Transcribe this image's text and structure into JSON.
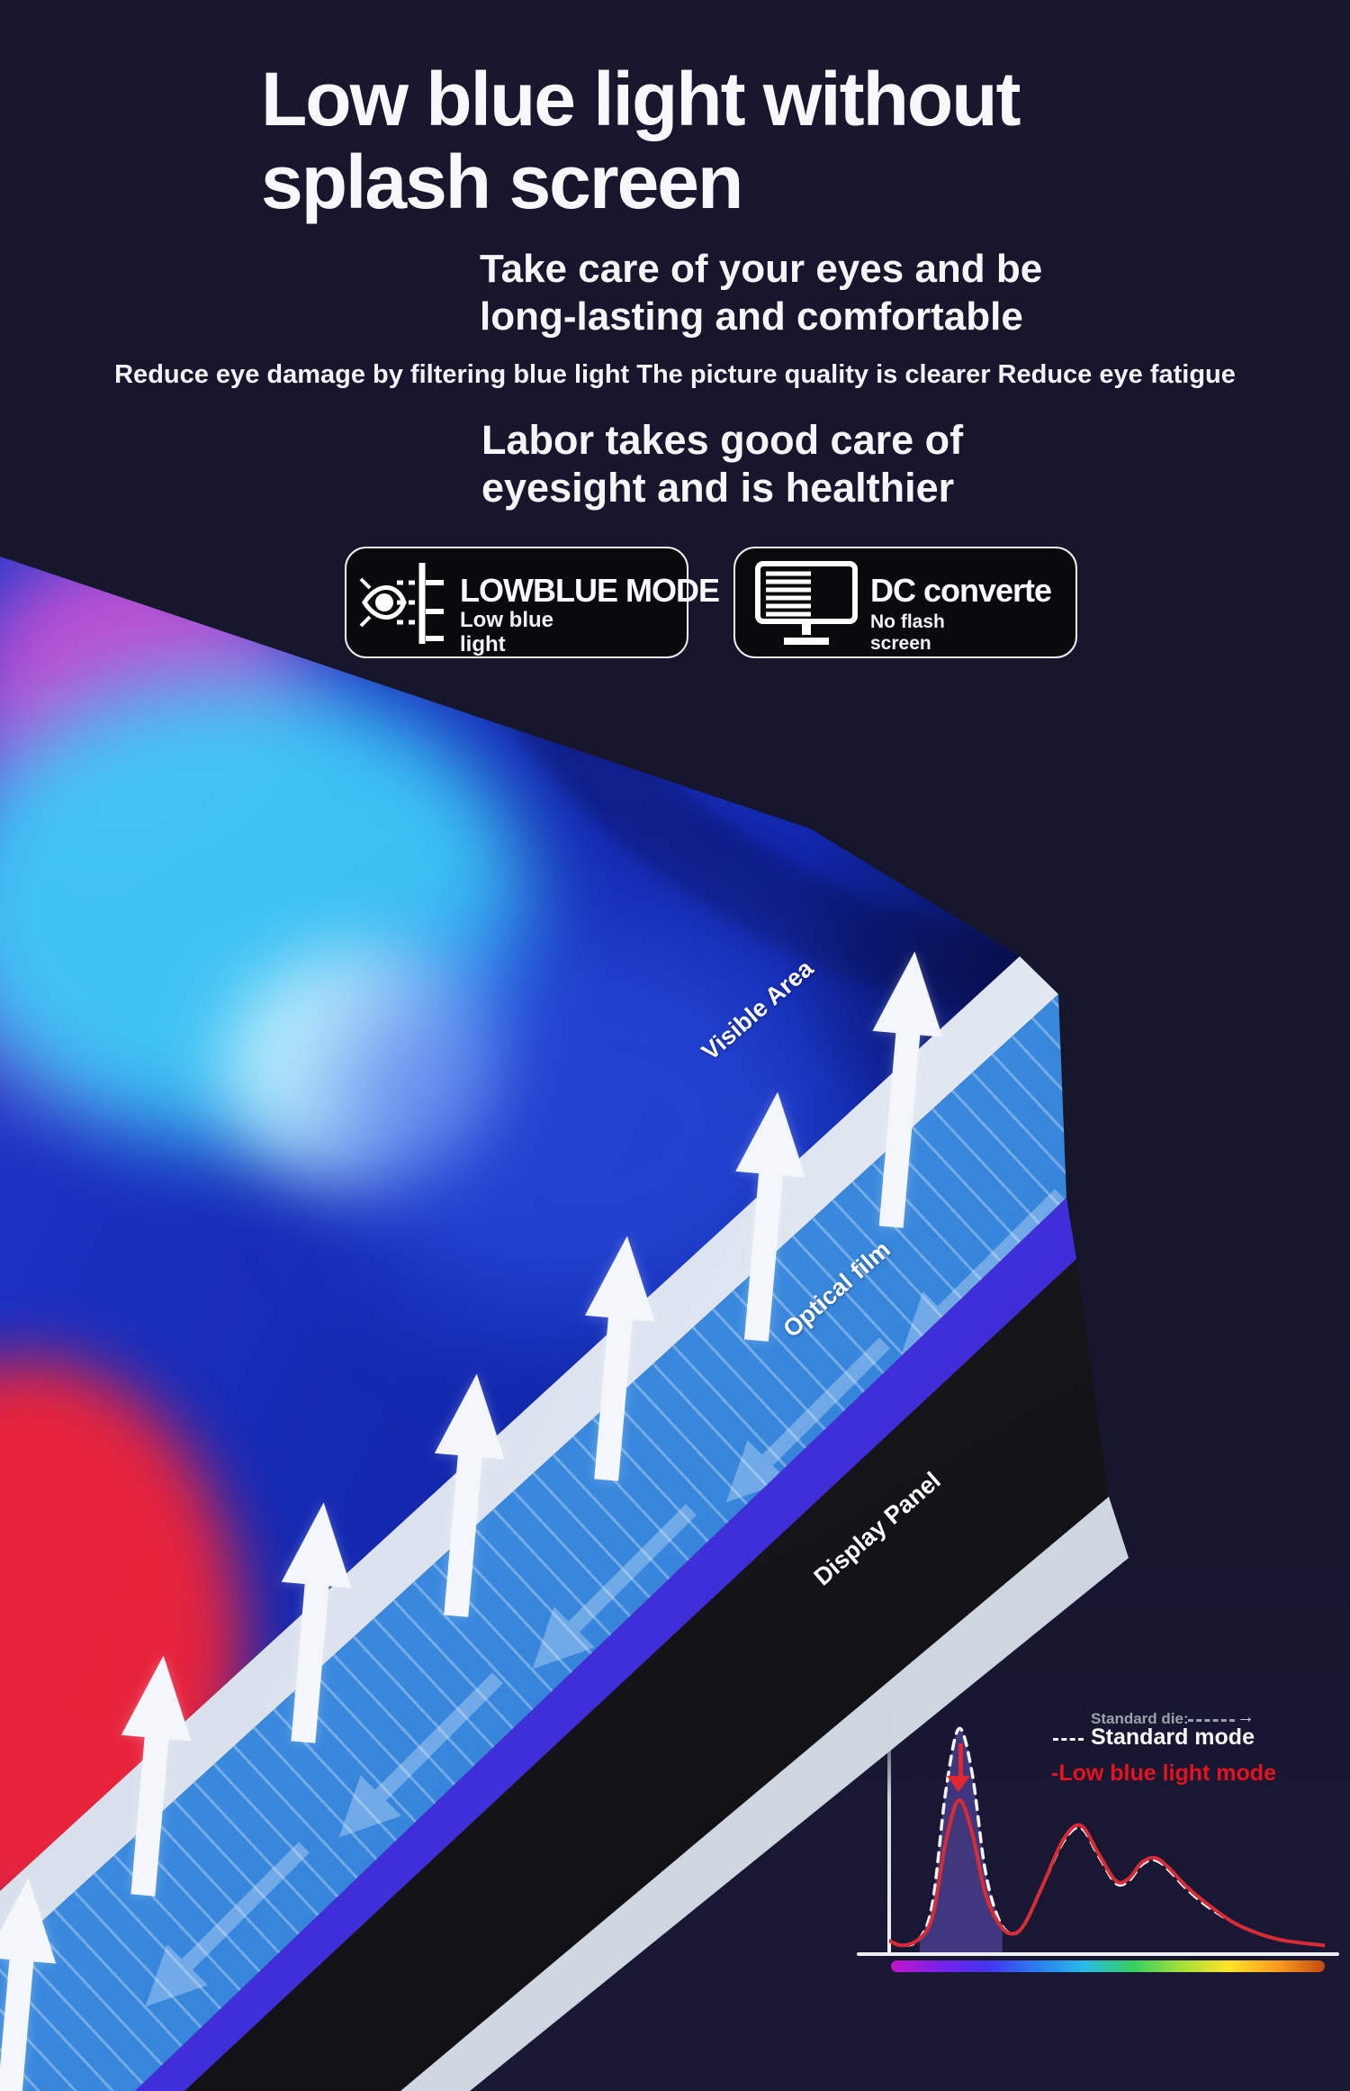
{
  "header": {
    "title_line1": "Low blue light without",
    "title_line2": "splash screen",
    "subtitle_line1": "Take care of your eyes and be",
    "subtitle_line2": "long-lasting and comfortable",
    "tagline": "Reduce eye damage by filtering blue light The picture quality is clearer Reduce eye fatigue",
    "benefit_line1": "Labor takes good care of",
    "benefit_line2": "eyesight and is healthier"
  },
  "badges": {
    "low_blue": {
      "icon": "eye-filter-icon",
      "title": "LOWBLUE MODE",
      "sub_line1": "Low blue",
      "sub_line2": "light"
    },
    "dc": {
      "icon": "monitor-lines-icon",
      "title": "DC converte",
      "sub_line1": "No flash",
      "sub_line2": "screen"
    }
  },
  "layers": {
    "visible_area": "Visible Area",
    "optical_film": "Optical film",
    "display_panel": "Display Panel"
  },
  "colors": {
    "background": "#15152b",
    "screen_blue": "#1c30c2",
    "film_blue": "#3a8ade",
    "purple_edge": "#4433e0",
    "panel_black": "#1a1a1f",
    "gray_edge": "#c4cdd9",
    "standard_curve": "#f2f4f8",
    "low_blue_curve": "#d92b33",
    "legend_red": "#e8121f"
  },
  "chart_data": {
    "type": "line",
    "title": "",
    "xlabel": "",
    "ylabel": "",
    "x_range_percent": [
      0,
      100
    ],
    "y_range_percent": [
      0,
      100
    ],
    "grid": false,
    "legend_position": "top-right",
    "legend": {
      "annotation": "Standard die:",
      "standard": "Standard mode",
      "low_blue": "-Low blue light mode"
    },
    "series": [
      {
        "name": "Standard mode",
        "style": "dashed",
        "color": "#f2f4f8",
        "points": [
          [
            0,
            5
          ],
          [
            3,
            3
          ],
          [
            7,
            6
          ],
          [
            10,
            22
          ],
          [
            13,
            70
          ],
          [
            16,
            97
          ],
          [
            19,
            78
          ],
          [
            22,
            36
          ],
          [
            25,
            15
          ],
          [
            28,
            8
          ],
          [
            31,
            12
          ],
          [
            35,
            28
          ],
          [
            40,
            48
          ],
          [
            44,
            54
          ],
          [
            48,
            42
          ],
          [
            52,
            30
          ],
          [
            55,
            31
          ],
          [
            58,
            38
          ],
          [
            61,
            40
          ],
          [
            64,
            36
          ],
          [
            68,
            28
          ],
          [
            73,
            20
          ],
          [
            79,
            13
          ],
          [
            85,
            8
          ],
          [
            91,
            5
          ],
          [
            100,
            3
          ]
        ]
      },
      {
        "name": "-Low blue light mode",
        "style": "solid",
        "color": "#d92b33",
        "points": [
          [
            0,
            5
          ],
          [
            3,
            3
          ],
          [
            7,
            6
          ],
          [
            10,
            16
          ],
          [
            13,
            48
          ],
          [
            16,
            66
          ],
          [
            19,
            52
          ],
          [
            22,
            26
          ],
          [
            25,
            13
          ],
          [
            28,
            8
          ],
          [
            31,
            12
          ],
          [
            35,
            28
          ],
          [
            40,
            49
          ],
          [
            44,
            55
          ],
          [
            48,
            43
          ],
          [
            52,
            31
          ],
          [
            55,
            32
          ],
          [
            58,
            39
          ],
          [
            61,
            41
          ],
          [
            64,
            37
          ],
          [
            68,
            29
          ],
          [
            73,
            21
          ],
          [
            79,
            13
          ],
          [
            85,
            8
          ],
          [
            91,
            5
          ],
          [
            100,
            3
          ]
        ]
      }
    ],
    "highlight_fill": {
      "series": "Standard mode",
      "x_start": 7,
      "x_end": 26,
      "color": "rgba(105,86,200,0.5)"
    },
    "reduction_arrow": {
      "at_x_percent": 16,
      "direction": "down",
      "color": "#e02830"
    },
    "spectrum_bar_colors": [
      "#c216c9",
      "#7a22e8",
      "#4433ee",
      "#2b7bf0",
      "#2ab9e8",
      "#35cf62",
      "#9fe03a",
      "#ffe32b",
      "#ff9d1d",
      "#c24a10"
    ]
  }
}
